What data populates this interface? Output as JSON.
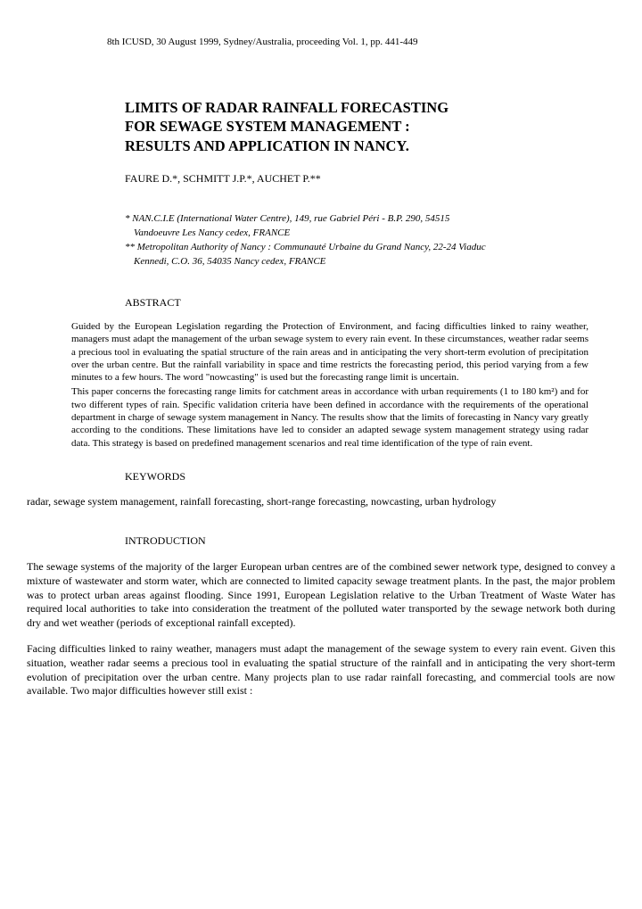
{
  "header_reference": "8th ICUSD, 30 August 1999, Sydney/Australia, proceeding Vol. 1, pp. 441-449",
  "title_line1": "LIMITS OF RADAR RAINFALL FORECASTING",
  "title_line2": "FOR SEWAGE SYSTEM MANAGEMENT :",
  "title_line3": "RESULTS AND APPLICATION IN NANCY.",
  "authors": "FAURE D.*, SCHMITT J.P.*, AUCHET P.**",
  "affiliation1_a": "* NAN.C.I.E (International Water Centre), 149, rue Gabriel Péri - B.P. 290, 54515",
  "affiliation1_b": "Vandoeuvre Les Nancy cedex, FRANCE",
  "affiliation2_a": "** Metropolitan Authority of Nancy : Communauté Urbaine du Grand Nancy, 22-24 Viaduc",
  "affiliation2_b": "Kennedi, C.O. 36, 54035 Nancy cedex, FRANCE",
  "abstract_heading": "ABSTRACT",
  "abstract_p1": "Guided by the European Legislation regarding the Protection of Environment, and facing difficulties linked to rainy weather, managers must adapt the management of the urban sewage system to every rain event. In these circumstances, weather radar seems a precious tool in evaluating the spatial structure of the rain areas and in anticipating the very short-term evolution of precipitation over the urban centre. But the rainfall variability in space and time restricts the forecasting period, this period varying from a few minutes to a few hours. The word \"nowcasting\" is used but the forecasting range limit is uncertain.",
  "abstract_p2": "This paper concerns the forecasting range limits for catchment areas in accordance with urban requirements (1 to 180 km²) and for two different types of rain. Specific validation criteria have been defined in accordance with the requirements of the operational department in charge of sewage system management in Nancy. The results show that the limits of forecasting in Nancy vary greatly according to the conditions. These limitations have led to consider an adapted sewage system management strategy using radar data. This strategy is based on predefined management scenarios and real time identification of the type of rain event.",
  "keywords_heading": "KEYWORDS",
  "keywords_body": "radar, sewage system management, rainfall forecasting, short-range forecasting, nowcasting, urban hydrology",
  "introduction_heading": "INTRODUCTION",
  "intro_p1": "The sewage systems of the majority of the larger European urban centres are of the combined sewer network type, designed to convey a mixture of wastewater and storm water, which are connected to limited capacity sewage treatment plants. In the past, the major problem was to protect urban areas against flooding. Since 1991, European Legislation relative to the Urban Treatment of Waste Water has required local authorities to take into consideration the treatment of the polluted water transported by the sewage network both during dry and wet weather (periods of exceptional rainfall excepted).",
  "intro_p2": "Facing difficulties linked to rainy weather, managers must adapt the management of the sewage system to every rain event. Given this situation, weather radar seems a precious tool in evaluating the spatial structure of the rainfall and in anticipating the very short-term evolution of precipitation over the urban centre. Many projects plan to use radar rainfall forecasting, and commercial tools are now available. Two major difficulties however still exist :"
}
